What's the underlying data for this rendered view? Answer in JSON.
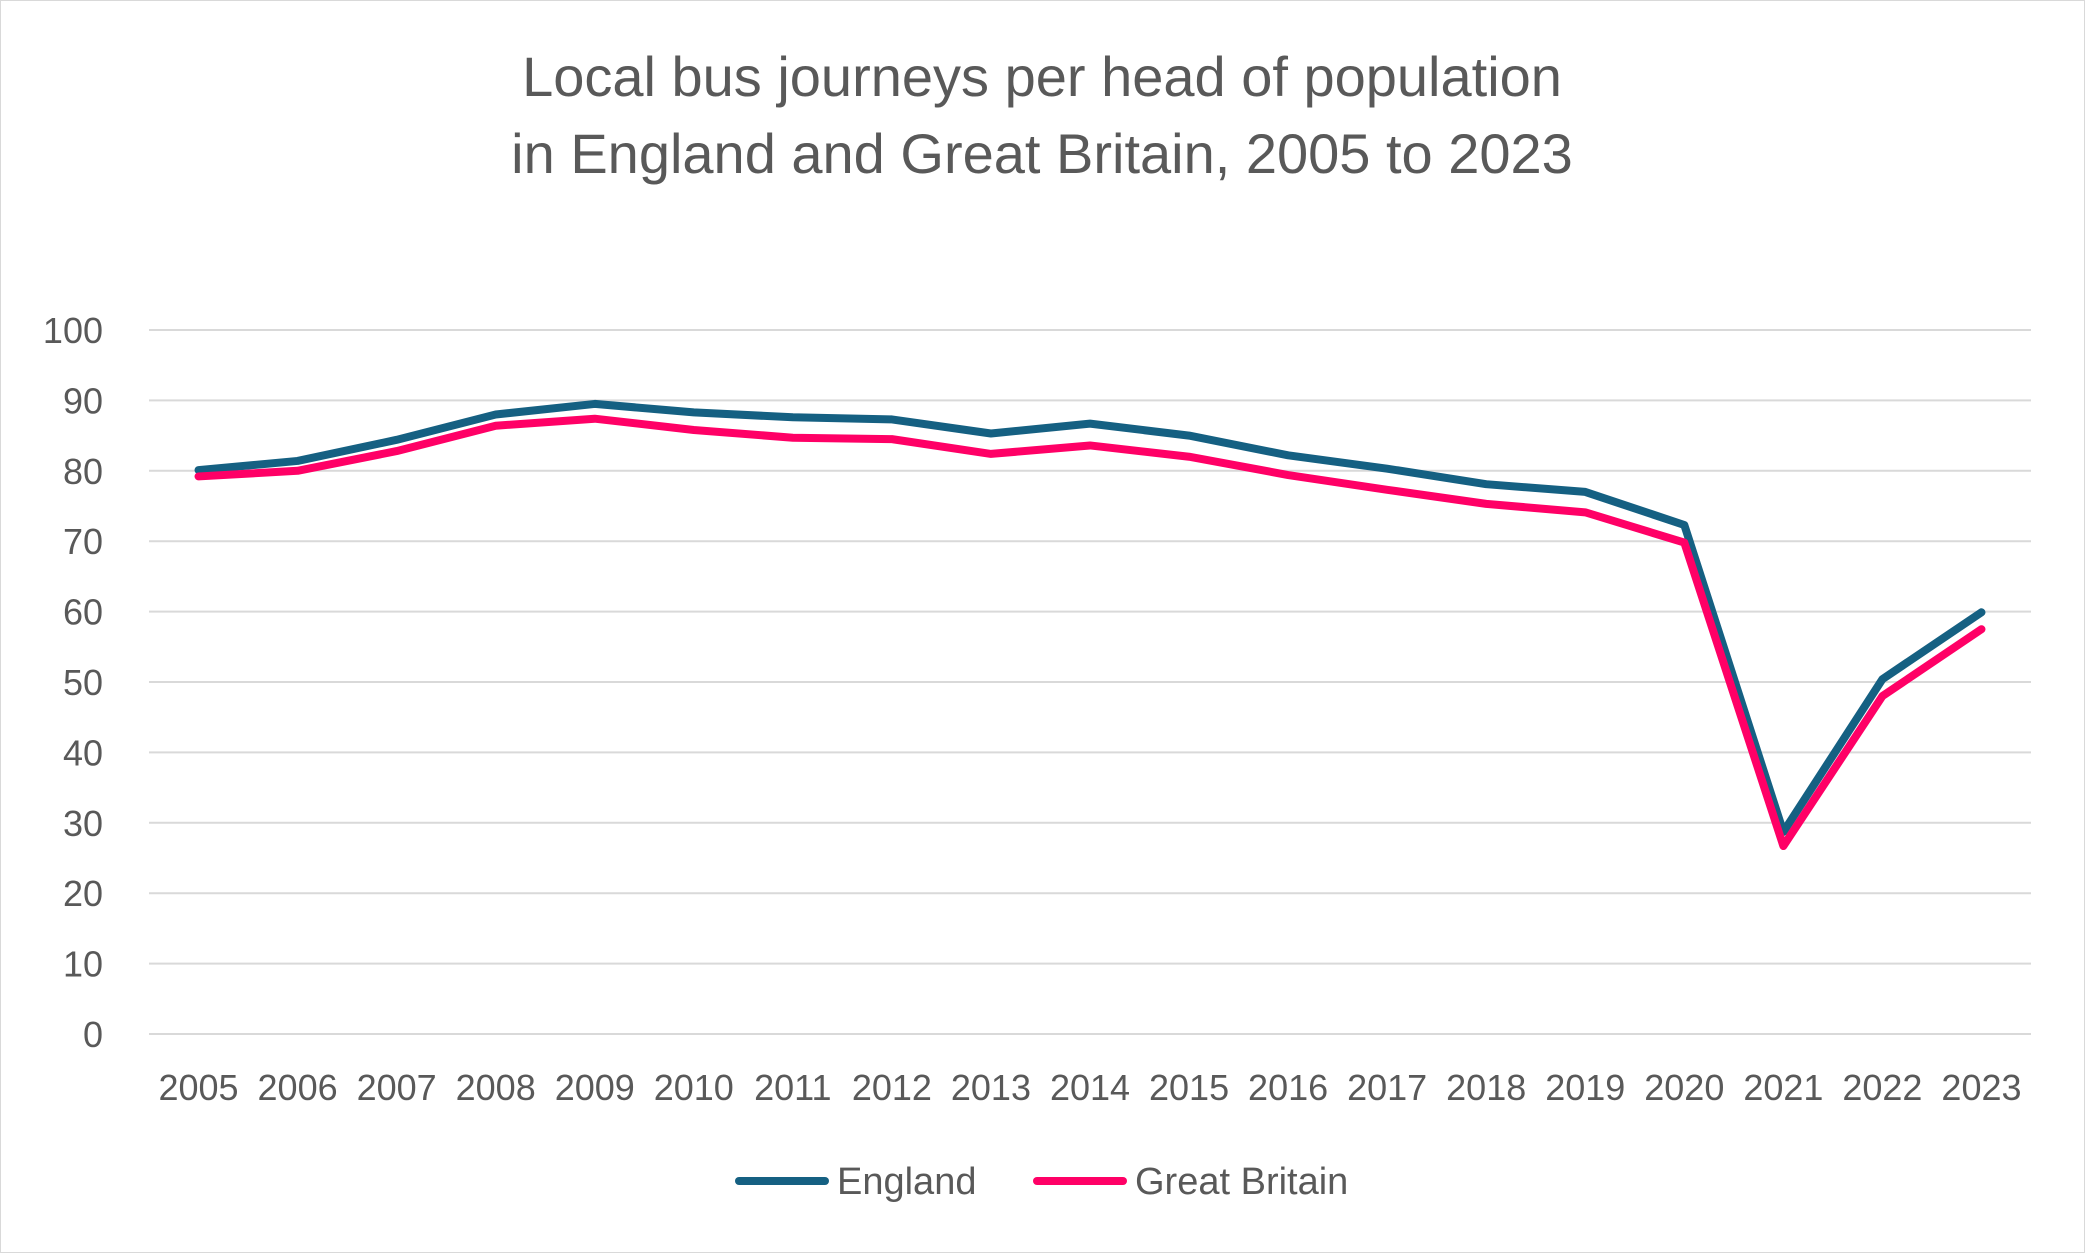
{
  "chart_data": {
    "type": "line",
    "title_lines": [
      "Local bus journeys per head of population",
      "in England and Great Britain, 2005 to 2023"
    ],
    "xlabel": "",
    "ylabel": "",
    "categories": [
      "2005",
      "2006",
      "2007",
      "2008",
      "2009",
      "2010",
      "2011",
      "2012",
      "2013",
      "2014",
      "2015",
      "2016",
      "2017",
      "2018",
      "2019",
      "2020",
      "2021",
      "2022",
      "2023"
    ],
    "ylim": [
      0,
      100
    ],
    "yticks": [
      0,
      10,
      20,
      30,
      40,
      50,
      60,
      70,
      80,
      90,
      100
    ],
    "grid": true,
    "legend_position": "bottom",
    "series": [
      {
        "name": "England",
        "color": "#156082",
        "values": [
          80.1,
          81.4,
          84.4,
          88.0,
          89.5,
          88.3,
          87.6,
          87.3,
          85.3,
          86.7,
          85.0,
          82.2,
          80.3,
          78.1,
          77.0,
          72.3,
          28.7,
          50.4,
          59.9
        ]
      },
      {
        "name": "Great Britain",
        "color": "#FF0066",
        "values": [
          79.2,
          80.0,
          82.8,
          86.4,
          87.4,
          85.8,
          84.7,
          84.5,
          82.4,
          83.6,
          82.0,
          79.4,
          77.3,
          75.3,
          74.1,
          69.8,
          26.7,
          48.0,
          57.5
        ]
      }
    ]
  }
}
